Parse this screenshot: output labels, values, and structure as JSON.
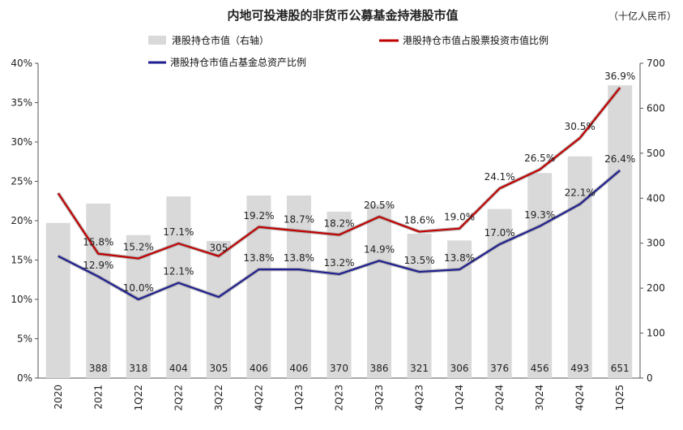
{
  "chart_data": {
    "type": "bar+line",
    "title": "内地可投港股的非货币公募基金持港股市值",
    "unit_note": "（十亿人民币）",
    "categories": [
      "2020",
      "2021",
      "1Q22",
      "2Q22",
      "3Q22",
      "4Q22",
      "1Q23",
      "2Q23",
      "3Q23",
      "4Q23",
      "1Q24",
      "2Q24",
      "3Q24",
      "4Q24",
      "1Q25"
    ],
    "bar_series": {
      "name": "港股持仓市值（右轴）",
      "axis": "right",
      "values": [
        345,
        388,
        318,
        404,
        305,
        406,
        406,
        370,
        386,
        321,
        306,
        376,
        456,
        493,
        651
      ],
      "labels": [
        "",
        "388",
        "318",
        "404",
        "305",
        "406",
        "406",
        "370",
        "386",
        "321",
        "306",
        "376",
        "456",
        "493",
        "651"
      ],
      "color": "#d9d9d9"
    },
    "line_series": [
      {
        "name": "港股持仓市值占股票投资市值比例",
        "axis": "left",
        "color": "#c00000",
        "values": [
          23.5,
          15.8,
          15.2,
          17.1,
          15.5,
          19.2,
          18.7,
          18.2,
          20.5,
          18.6,
          19.0,
          24.1,
          26.5,
          30.5,
          36.9
        ],
        "labels": [
          "",
          "15.8%",
          "15.2%",
          "17.1%",
          "",
          "19.2%",
          "18.7%",
          "18.2%",
          "20.5%",
          "18.6%",
          "19.0%",
          "24.1%",
          "26.5%",
          "30.5%",
          "36.9%"
        ]
      },
      {
        "name": "港股持仓市值占基金总资产比例",
        "axis": "left",
        "color": "#1f1f8f",
        "values": [
          15.5,
          12.9,
          10.0,
          12.1,
          10.3,
          13.8,
          13.8,
          13.2,
          14.9,
          13.5,
          13.8,
          17.0,
          19.3,
          22.1,
          26.4
        ],
        "labels": [
          "",
          "12.9%",
          "10.0%",
          "12.1%",
          "",
          "13.8%",
          "13.8%",
          "13.2%",
          "14.9%",
          "13.5%",
          "13.8%",
          "17.0%",
          "19.3%",
          "22.1%",
          "26.4%"
        ]
      }
    ],
    "left_axis": {
      "min": 0,
      "max": 40,
      "step": 5,
      "format": "percent"
    },
    "right_axis": {
      "min": 0,
      "max": 700,
      "step": 100
    },
    "legend_placement": "top",
    "grid": false
  }
}
